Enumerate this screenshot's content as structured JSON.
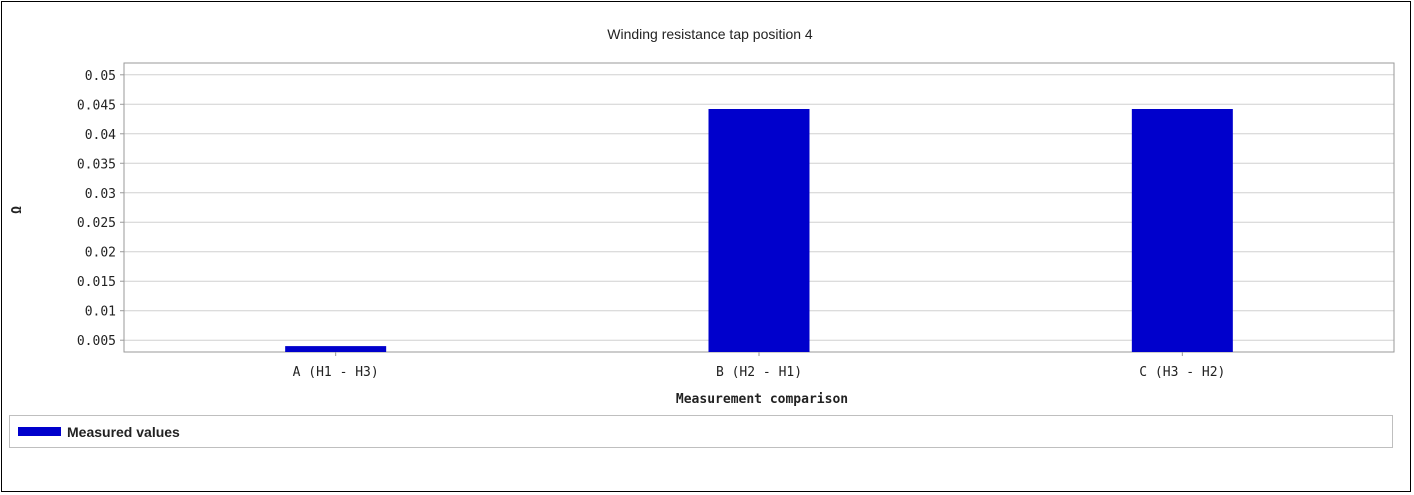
{
  "colors": {
    "bar": "#0000cc",
    "grid": "#d0d0d0",
    "axis": "#9a9a9a"
  },
  "legend": {
    "label": "Measured values"
  },
  "chart_data": {
    "type": "bar",
    "title": "Winding resistance tap position 4",
    "xlabel": "Measurement comparison",
    "ylabel": "Ω",
    "categories": [
      "A (H1 - H3)",
      "B (H2 - H1)",
      "C (H3 - H2)"
    ],
    "series": [
      {
        "name": "Measured values",
        "values": [
          0.004,
          0.0442,
          0.0442
        ]
      }
    ],
    "ylim": [
      0.003,
      0.052
    ],
    "yticks": [
      0.005,
      0.01,
      0.015,
      0.02,
      0.025,
      0.03,
      0.035,
      0.04,
      0.045,
      0.05
    ],
    "ytick_labels": [
      "0.005",
      "0.01",
      "0.015",
      "0.02",
      "0.025",
      "0.03",
      "0.035",
      "0.04",
      "0.045",
      "0.05"
    ],
    "grid": true,
    "legend_position": "bottom"
  }
}
